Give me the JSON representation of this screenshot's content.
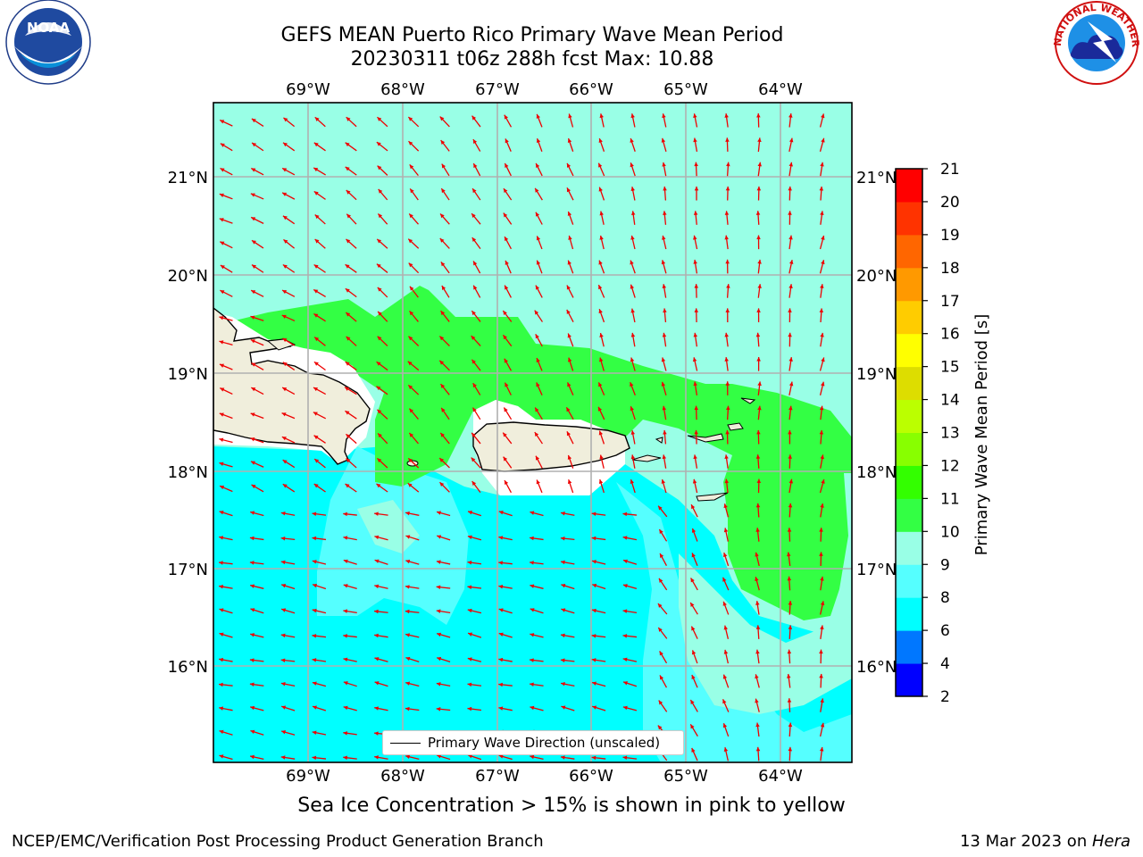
{
  "title_line1": "GEFS MEAN Puerto Rico Primary Wave Mean Period",
  "title_line2": "20230311 t06z 288h fcst   Max: 10.88",
  "lon_labels": [
    "69°W",
    "68°W",
    "67°W",
    "66°W",
    "65°W",
    "64°W"
  ],
  "lat_labels": [
    "21°N",
    "20°N",
    "19°N",
    "18°N",
    "17°N",
    "16°N"
  ],
  "colorbar": {
    "label": "Primary Wave Mean Period [s]",
    "ticks": [
      "2",
      "4",
      "6",
      "8",
      "9",
      "10",
      "11",
      "12",
      "13",
      "14",
      "15",
      "16",
      "17",
      "18",
      "19",
      "20",
      "21"
    ],
    "colors": [
      "#0000ff",
      "#0077ff",
      "#00ffff",
      "#55ffff",
      "#99ffe6",
      "#33ff44",
      "#33ff00",
      "#88ff00",
      "#bbff00",
      "#dddd00",
      "#ffff00",
      "#ffcc00",
      "#ff9900",
      "#ff6600",
      "#ff3300",
      "#ff0000"
    ]
  },
  "legend": {
    "label": "Primary Wave Direction (unscaled)"
  },
  "caption": "Sea Ice Concentration > 15% is shown in pink to yellow",
  "footer_left": "NCEP/EMC/Verification Post Processing Product Generation Branch",
  "footer_right_date": "13 Mar 2023 on ",
  "footer_right_host": "Hera",
  "logos": {
    "left": "noaa-logo",
    "right": "nws-logo",
    "noaa_text": "NOAA",
    "nws_text": "NATIONAL WEATHER SERVICE"
  }
}
